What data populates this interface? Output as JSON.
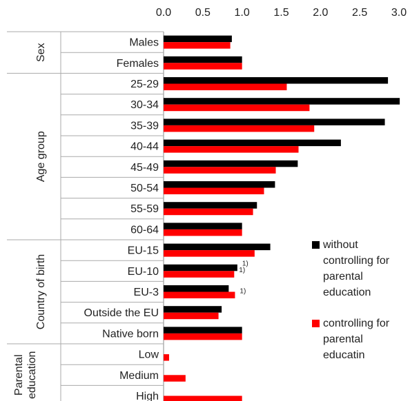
{
  "chart_data": {
    "type": "bar",
    "orientation": "horizontal",
    "xlim": [
      0,
      3.0
    ],
    "x_ticks": [
      "0.0",
      "0.5",
      "1.0",
      "1.5",
      "2.0",
      "2.5",
      "3.0"
    ],
    "x_tick_values": [
      0,
      0.5,
      1.0,
      1.5,
      2.0,
      2.5,
      3.0
    ],
    "groups": [
      {
        "label": "Sex",
        "categories": [
          "Males",
          "Females"
        ]
      },
      {
        "label": "Age group",
        "categories": [
          "25-29",
          "30-34",
          "35-39",
          "40-44",
          "45-49",
          "50-54",
          "55-59",
          "60-64"
        ]
      },
      {
        "label": "Country of birth",
        "categories": [
          "EU-15",
          "EU-10",
          "EU-3",
          "Outside the EU",
          "Native born"
        ]
      },
      {
        "label": "Parental education",
        "categories": [
          "Low",
          "Medium",
          "High"
        ]
      }
    ],
    "categories": [
      "Males",
      "Females",
      "25-29",
      "30-34",
      "35-39",
      "40-44",
      "45-49",
      "50-54",
      "55-59",
      "60-64",
      "EU-15",
      "EU-10",
      "EU-3",
      "Outside the EU",
      "Native born",
      "Low",
      "Medium",
      "High"
    ],
    "series": [
      {
        "name": "without controlling for parental education",
        "color": "#000000",
        "values": [
          0.87,
          1.0,
          2.86,
          3.01,
          2.82,
          2.26,
          1.71,
          1.42,
          1.19,
          1.0,
          1.36,
          0.94,
          0.83,
          0.74,
          1.0,
          null,
          null,
          null
        ]
      },
      {
        "name": "controlling for parental educatin",
        "color": "#ff0000",
        "values": [
          0.85,
          1.0,
          1.57,
          1.86,
          1.92,
          1.72,
          1.43,
          1.28,
          1.14,
          1.0,
          1.16,
          0.9,
          0.91,
          0.7,
          1.0,
          0.07,
          0.28,
          1.0
        ]
      }
    ],
    "annotations": [
      {
        "category": "EU-10",
        "series": 0,
        "text": "1)"
      },
      {
        "category": "EU-10",
        "series": 1,
        "text": "1)"
      },
      {
        "category": "EU-3",
        "series": 1,
        "text": "1)"
      }
    ],
    "legend": {
      "placement": "right",
      "items": [
        {
          "lines": [
            "without",
            "controlling for",
            "parental",
            "education"
          ]
        },
        {
          "lines": [
            "controlling for",
            "parental",
            "educatin"
          ]
        }
      ]
    },
    "grid": false
  }
}
